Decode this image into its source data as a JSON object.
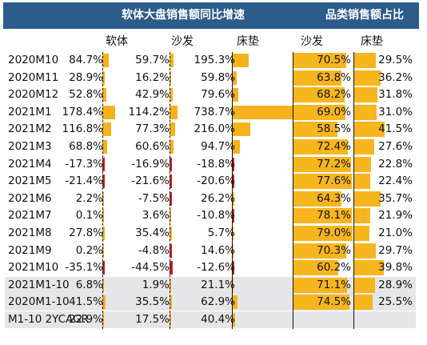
{
  "titles": {
    "left": "软体大盘销售额同比增速",
    "right": "品类销售额占比"
  },
  "columns": {
    "growth": [
      "软体",
      "沙发",
      "床垫"
    ],
    "share": [
      "沙发",
      "床垫"
    ]
  },
  "colors": {
    "header_bg": "#2b5c8a",
    "positive_bar": "#f5b21c",
    "negative_bar": "#c42121",
    "shaded_row": "#e6e6e8"
  },
  "rows": [
    {
      "label": "2020M10",
      "growth": [
        {
          "text": "84.7%",
          "v": 84.7
        },
        {
          "text": "59.7%",
          "v": 59.7
        },
        {
          "text": "195.3%",
          "v": 195.3
        }
      ],
      "share": [
        {
          "text": "70.5%",
          "v": 70.5
        },
        {
          "text": "29.5%",
          "v": 29.5
        }
      ],
      "shaded": false
    },
    {
      "label": "2020M11",
      "growth": [
        {
          "text": "28.9%",
          "v": 28.9
        },
        {
          "text": "16.2%",
          "v": 16.2
        },
        {
          "text": "59.8%",
          "v": 59.8
        }
      ],
      "share": [
        {
          "text": "63.8%",
          "v": 63.8
        },
        {
          "text": "36.2%",
          "v": 36.2
        }
      ],
      "shaded": false
    },
    {
      "label": "2020M12",
      "growth": [
        {
          "text": "52.8%",
          "v": 52.8
        },
        {
          "text": "42.9%",
          "v": 42.9
        },
        {
          "text": "79.6%",
          "v": 79.6
        }
      ],
      "share": [
        {
          "text": "68.2%",
          "v": 68.2
        },
        {
          "text": "31.8%",
          "v": 31.8
        }
      ],
      "shaded": false
    },
    {
      "label": "2021M1",
      "growth": [
        {
          "text": "178.4%",
          "v": 178.4
        },
        {
          "text": "114.2%",
          "v": 114.2
        },
        {
          "text": "738.7%",
          "v": 738.7
        }
      ],
      "share": [
        {
          "text": "69.0%",
          "v": 69.0
        },
        {
          "text": "31.0%",
          "v": 31.0
        }
      ],
      "shaded": false
    },
    {
      "label": "2021M2",
      "growth": [
        {
          "text": "116.8%",
          "v": 116.8
        },
        {
          "text": "77.3%",
          "v": 77.3
        },
        {
          "text": "216.0%",
          "v": 216.0
        }
      ],
      "share": [
        {
          "text": "58.5%",
          "v": 58.5
        },
        {
          "text": "41.5%",
          "v": 41.5
        }
      ],
      "shaded": false
    },
    {
      "label": "2021M3",
      "growth": [
        {
          "text": "68.8%",
          "v": 68.8
        },
        {
          "text": "60.6%",
          "v": 60.6
        },
        {
          "text": "94.7%",
          "v": 94.7
        }
      ],
      "share": [
        {
          "text": "72.4%",
          "v": 72.4
        },
        {
          "text": "27.6%",
          "v": 27.6
        }
      ],
      "shaded": false
    },
    {
      "label": "2021M4",
      "growth": [
        {
          "text": "-17.3%",
          "v": -17.3
        },
        {
          "text": "-16.9%",
          "v": -16.9
        },
        {
          "text": "-18.8%",
          "v": -18.8
        }
      ],
      "share": [
        {
          "text": "77.2%",
          "v": 77.2
        },
        {
          "text": "22.8%",
          "v": 22.8
        }
      ],
      "shaded": false
    },
    {
      "label": "2021M5",
      "growth": [
        {
          "text": "-21.4%",
          "v": -21.4
        },
        {
          "text": "-21.6%",
          "v": -21.6
        },
        {
          "text": "-20.6%",
          "v": -20.6
        }
      ],
      "share": [
        {
          "text": "77.6%",
          "v": 77.6
        },
        {
          "text": "22.4%",
          "v": 22.4
        }
      ],
      "shaded": false
    },
    {
      "label": "2021M6",
      "growth": [
        {
          "text": "2.2%",
          "v": 2.2
        },
        {
          "text": "-7.5%",
          "v": -7.5
        },
        {
          "text": "26.2%",
          "v": 26.2
        }
      ],
      "share": [
        {
          "text": "64.3%",
          "v": 64.3
        },
        {
          "text": "35.7%",
          "v": 35.7
        }
      ],
      "shaded": false
    },
    {
      "label": "2021M7",
      "growth": [
        {
          "text": "0.1%",
          "v": 0.1
        },
        {
          "text": "3.6%",
          "v": 3.6
        },
        {
          "text": "-10.8%",
          "v": -10.8
        }
      ],
      "share": [
        {
          "text": "78.1%",
          "v": 78.1
        },
        {
          "text": "21.9%",
          "v": 21.9
        }
      ],
      "shaded": false
    },
    {
      "label": "2021M8",
      "growth": [
        {
          "text": "27.8%",
          "v": 27.8
        },
        {
          "text": "35.4%",
          "v": 35.4
        },
        {
          "text": "5.7%",
          "v": 5.7
        }
      ],
      "share": [
        {
          "text": "79.0%",
          "v": 79.0
        },
        {
          "text": "21.0%",
          "v": 21.0
        }
      ],
      "shaded": false
    },
    {
      "label": "2021M9",
      "growth": [
        {
          "text": "0.2%",
          "v": 0.2
        },
        {
          "text": "-4.8%",
          "v": -4.8
        },
        {
          "text": "14.6%",
          "v": 14.6
        }
      ],
      "share": [
        {
          "text": "70.3%",
          "v": 70.3
        },
        {
          "text": "29.7%",
          "v": 29.7
        }
      ],
      "shaded": false
    },
    {
      "label": "2021M10",
      "growth": [
        {
          "text": "-35.1%",
          "v": -35.1
        },
        {
          "text": "-44.5%",
          "v": -44.5
        },
        {
          "text": "-12.6%",
          "v": -12.6
        }
      ],
      "share": [
        {
          "text": "60.2%",
          "v": 60.2
        },
        {
          "text": "39.8%",
          "v": 39.8
        }
      ],
      "shaded": false
    },
    {
      "label": "2021M1-10",
      "growth": [
        {
          "text": "6.8%",
          "v": 6.8
        },
        {
          "text": "1.9%",
          "v": 1.9
        },
        {
          "text": "21.1%",
          "v": 21.1
        }
      ],
      "share": [
        {
          "text": "71.1%",
          "v": 71.1
        },
        {
          "text": "28.9%",
          "v": 28.9
        }
      ],
      "shaded": true
    },
    {
      "label": "2020M1-10",
      "growth": [
        {
          "text": "41.5%",
          "v": 41.5
        },
        {
          "text": "35.5%",
          "v": 35.5
        },
        {
          "text": "62.9%",
          "v": 62.9
        }
      ],
      "share": [
        {
          "text": "74.5%",
          "v": 74.5
        },
        {
          "text": "25.5%",
          "v": 25.5
        }
      ],
      "shaded": true
    },
    {
      "label": "M1-10 2YCAGR",
      "growth": [
        {
          "text": "22.9%",
          "v": 22.9
        },
        {
          "text": "17.5%",
          "v": 17.5
        },
        {
          "text": "40.4%",
          "v": 40.4
        }
      ],
      "share": [],
      "shaded": true
    }
  ]
}
